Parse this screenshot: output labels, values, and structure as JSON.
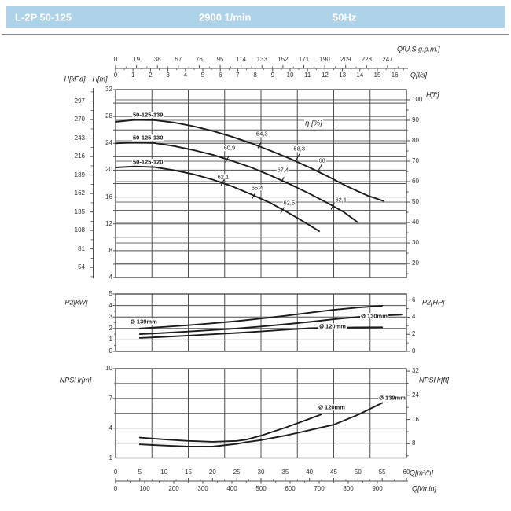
{
  "header": {
    "model": "L-2P 50-125",
    "speed": "2900 1/min",
    "frequency": "50Hz"
  },
  "colors": {
    "header_bg": "#aed3e8",
    "header_text": "#ffffff",
    "divider": "#8e8e8e",
    "grid_dark": "#4f4f4f",
    "grid_light": "#a3a3a3",
    "border": "#3f3f3f",
    "curve": "#1c1c1c",
    "text": "#333333"
  },
  "axes_shared": {
    "top_gpm": {
      "label": "Q[U.S.g.p.m.]",
      "ticks": [
        0,
        19,
        38,
        57,
        76,
        95,
        114,
        133,
        152,
        171,
        190,
        209,
        228,
        247
      ]
    },
    "top_ls": {
      "label": "Q[l/s]",
      "ticks": [
        0,
        1,
        2,
        3,
        4,
        5,
        6,
        7,
        8,
        9,
        10,
        11,
        12,
        13,
        14,
        15,
        16
      ]
    },
    "bottom_m3h": {
      "label": "Q[m³/h]",
      "ticks": [
        0,
        5,
        10,
        15,
        20,
        25,
        30,
        35,
        40,
        45,
        50,
        55,
        60
      ]
    },
    "bottom_lmin": {
      "label": "Q[l/min]",
      "ticks": [
        0,
        100,
        200,
        300,
        400,
        500,
        600,
        700,
        800,
        900
      ]
    }
  },
  "chart_data": [
    {
      "id": "head",
      "type": "line",
      "xlabel": "Q[m³/h]",
      "xlim": [
        0,
        60
      ],
      "ylim_m": [
        4,
        32
      ],
      "grid": "on",
      "y_left_kpa": {
        "label": "H[kPa]",
        "ticks": [
          297,
          270,
          243,
          216,
          189,
          162,
          135,
          108,
          81,
          54
        ]
      },
      "y_left_m": {
        "label": "H[m]",
        "ticks": [
          32,
          28,
          24,
          20,
          16,
          12,
          8,
          4
        ]
      },
      "y_right_ft": {
        "label": "H[ft]",
        "ticks": [
          100,
          90,
          80,
          70,
          60,
          50,
          40,
          30,
          20
        ]
      },
      "series": [
        {
          "name": "50-125-139",
          "points": [
            [
              0,
              27.2
            ],
            [
              4,
              27.5
            ],
            [
              8,
              27.45
            ],
            [
              12,
              27.1
            ],
            [
              16,
              26.55
            ],
            [
              20,
              25.85
            ],
            [
              24,
              25.0
            ],
            [
              28,
              24.0
            ],
            [
              32,
              22.9
            ],
            [
              36,
              21.7
            ],
            [
              40,
              20.4
            ],
            [
              44,
              19.0
            ],
            [
              48,
              17.5
            ],
            [
              52,
              16.2
            ],
            [
              55.3,
              15.4
            ]
          ]
        },
        {
          "name": "50-125-130",
          "points": [
            [
              0,
              24.0
            ],
            [
              4,
              24.15
            ],
            [
              8,
              24.05
            ],
            [
              12,
              23.6
            ],
            [
              16,
              23.0
            ],
            [
              20,
              22.3
            ],
            [
              24,
              21.4
            ],
            [
              28,
              20.4
            ],
            [
              32,
              19.2
            ],
            [
              36,
              17.9
            ],
            [
              40,
              16.5
            ],
            [
              44,
              15.0
            ],
            [
              47,
              13.8
            ],
            [
              50,
              12.2
            ]
          ]
        },
        {
          "name": "50-125-120",
          "points": [
            [
              0,
              20.4
            ],
            [
              4,
              20.55
            ],
            [
              8,
              20.45
            ],
            [
              12,
              20.0
            ],
            [
              16,
              19.4
            ],
            [
              20,
              18.6
            ],
            [
              24,
              17.6
            ],
            [
              28,
              16.4
            ],
            [
              32,
              15.1
            ],
            [
              36,
              13.5
            ],
            [
              40,
              11.8
            ],
            [
              42,
              10.9
            ]
          ]
        }
      ],
      "efficiency": {
        "label": "η [%]",
        "markers": [
          {
            "value": "64,3",
            "tick": [
              29.7,
              23.75
            ],
            "label_at": [
              30.2,
              25.4
            ]
          },
          {
            "value": "68,3",
            "tick": [
              37.6,
              21.95
            ],
            "label_at": [
              37.9,
              23.2
            ]
          },
          {
            "value": "68",
            "tick": [
              42.2,
              20.4
            ],
            "label_at": [
              42.6,
              21.5
            ]
          },
          {
            "value": "60,9",
            "tick": [
              23.0,
              21.6
            ],
            "label_at": [
              23.5,
              23.3
            ]
          },
          {
            "value": "67,4",
            "tick": [
              34.4,
              18.5
            ],
            "label_at": [
              34.5,
              20.0
            ]
          },
          {
            "value": "62,1",
            "tick": [
              44.8,
              14.6
            ],
            "label_at": [
              46.5,
              15.6
            ]
          },
          {
            "value": "62,1",
            "tick": [
              22.1,
              18.2
            ],
            "label_at": [
              22.2,
              19.0
            ]
          },
          {
            "value": "65,4",
            "tick": [
              28.5,
              16.2
            ],
            "label_at": [
              29.2,
              17.4
            ]
          },
          {
            "value": "62,5",
            "tick": [
              34.4,
              14.0
            ],
            "label_at": [
              35.8,
              15.1
            ]
          }
        ]
      }
    },
    {
      "id": "power",
      "type": "line",
      "xlabel": "Q[m³/h]",
      "xlim": [
        0,
        60
      ],
      "ylim_kw": [
        0,
        5
      ],
      "grid": "on",
      "y_left_kw": {
        "label": "P2[kW]",
        "ticks": [
          5,
          4,
          3,
          2,
          1,
          0
        ]
      },
      "y_right_hp": {
        "label": "P2[HP]",
        "ticks": [
          6,
          4,
          2,
          0
        ]
      },
      "series": [
        {
          "name": "Ø 139mm",
          "points": [
            [
              5,
              2.0
            ],
            [
              10,
              2.14
            ],
            [
              15,
              2.28
            ],
            [
              20,
              2.45
            ],
            [
              25,
              2.64
            ],
            [
              30,
              2.86
            ],
            [
              35,
              3.1
            ],
            [
              40,
              3.37
            ],
            [
              45,
              3.62
            ],
            [
              50,
              3.82
            ],
            [
              55,
              3.98
            ]
          ]
        },
        {
          "name": "Ø 130mm",
          "points": [
            [
              5,
              1.5
            ],
            [
              10,
              1.61
            ],
            [
              15,
              1.73
            ],
            [
              20,
              1.86
            ],
            [
              25,
              2.0
            ],
            [
              30,
              2.17
            ],
            [
              35,
              2.36
            ],
            [
              40,
              2.57
            ],
            [
              45,
              2.8
            ],
            [
              50,
              3.0
            ],
            [
              55,
              3.13
            ],
            [
              59,
              3.2
            ]
          ]
        },
        {
          "name": "Ø 120mm",
          "points": [
            [
              5,
              1.17
            ],
            [
              10,
              1.27
            ],
            [
              15,
              1.38
            ],
            [
              20,
              1.49
            ],
            [
              25,
              1.61
            ],
            [
              30,
              1.74
            ],
            [
              35,
              1.89
            ],
            [
              40,
              2.02
            ],
            [
              45,
              2.07
            ],
            [
              50,
              2.09
            ],
            [
              55,
              2.1
            ]
          ]
        }
      ]
    },
    {
      "id": "npsh",
      "type": "line",
      "xlabel": "Q[m³/h]",
      "xlim": [
        0,
        60
      ],
      "ylim_m": [
        1,
        10
      ],
      "grid": "on",
      "y_left_m": {
        "label": "NPSHr[m]",
        "ticks": [
          10,
          7,
          4,
          1
        ]
      },
      "y_right_ft": {
        "label": "NPSHr[ft]",
        "ticks": [
          32,
          24,
          16,
          8
        ]
      },
      "series": [
        {
          "name": "Ø 139mm",
          "points": [
            [
              5,
              2.37
            ],
            [
              10,
              2.25
            ],
            [
              15,
              2.16
            ],
            [
              20,
              2.15
            ],
            [
              25,
              2.42
            ],
            [
              27,
              2.6
            ],
            [
              30,
              2.8
            ],
            [
              35,
              3.25
            ],
            [
              40,
              3.8
            ],
            [
              45,
              4.35
            ],
            [
              50,
              5.35
            ],
            [
              55,
              6.55
            ]
          ]
        },
        {
          "name": "Ø 120mm",
          "points": [
            [
              5,
              3.05
            ],
            [
              10,
              2.87
            ],
            [
              15,
              2.72
            ],
            [
              20,
              2.63
            ],
            [
              25,
              2.72
            ],
            [
              27,
              2.85
            ],
            [
              30,
              3.25
            ],
            [
              35,
              4.05
            ],
            [
              40,
              4.95
            ],
            [
              42.5,
              5.4
            ]
          ]
        }
      ]
    }
  ]
}
